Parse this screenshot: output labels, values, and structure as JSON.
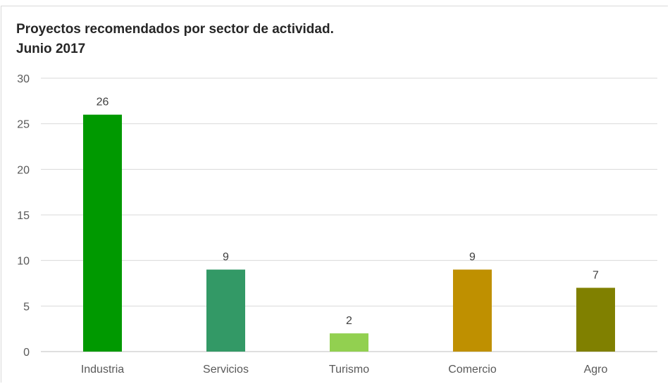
{
  "chart_data": {
    "type": "bar",
    "title": "Proyectos recomendados por sector de actividad.",
    "subtitle": "Junio 2017",
    "categories": [
      "Industria",
      "Servicios",
      "Turismo",
      "Comercio",
      "Agro"
    ],
    "values": [
      26,
      9,
      2,
      9,
      7
    ],
    "colors": [
      "#009900",
      "#339966",
      "#92d050",
      "#bf9000",
      "#808000"
    ],
    "ylim": [
      0,
      30
    ],
    "yticks": [
      0,
      5,
      10,
      15,
      20,
      25,
      30
    ],
    "xlabel": "",
    "ylabel": "",
    "grid": true,
    "legend": "none",
    "data_labels": true
  }
}
